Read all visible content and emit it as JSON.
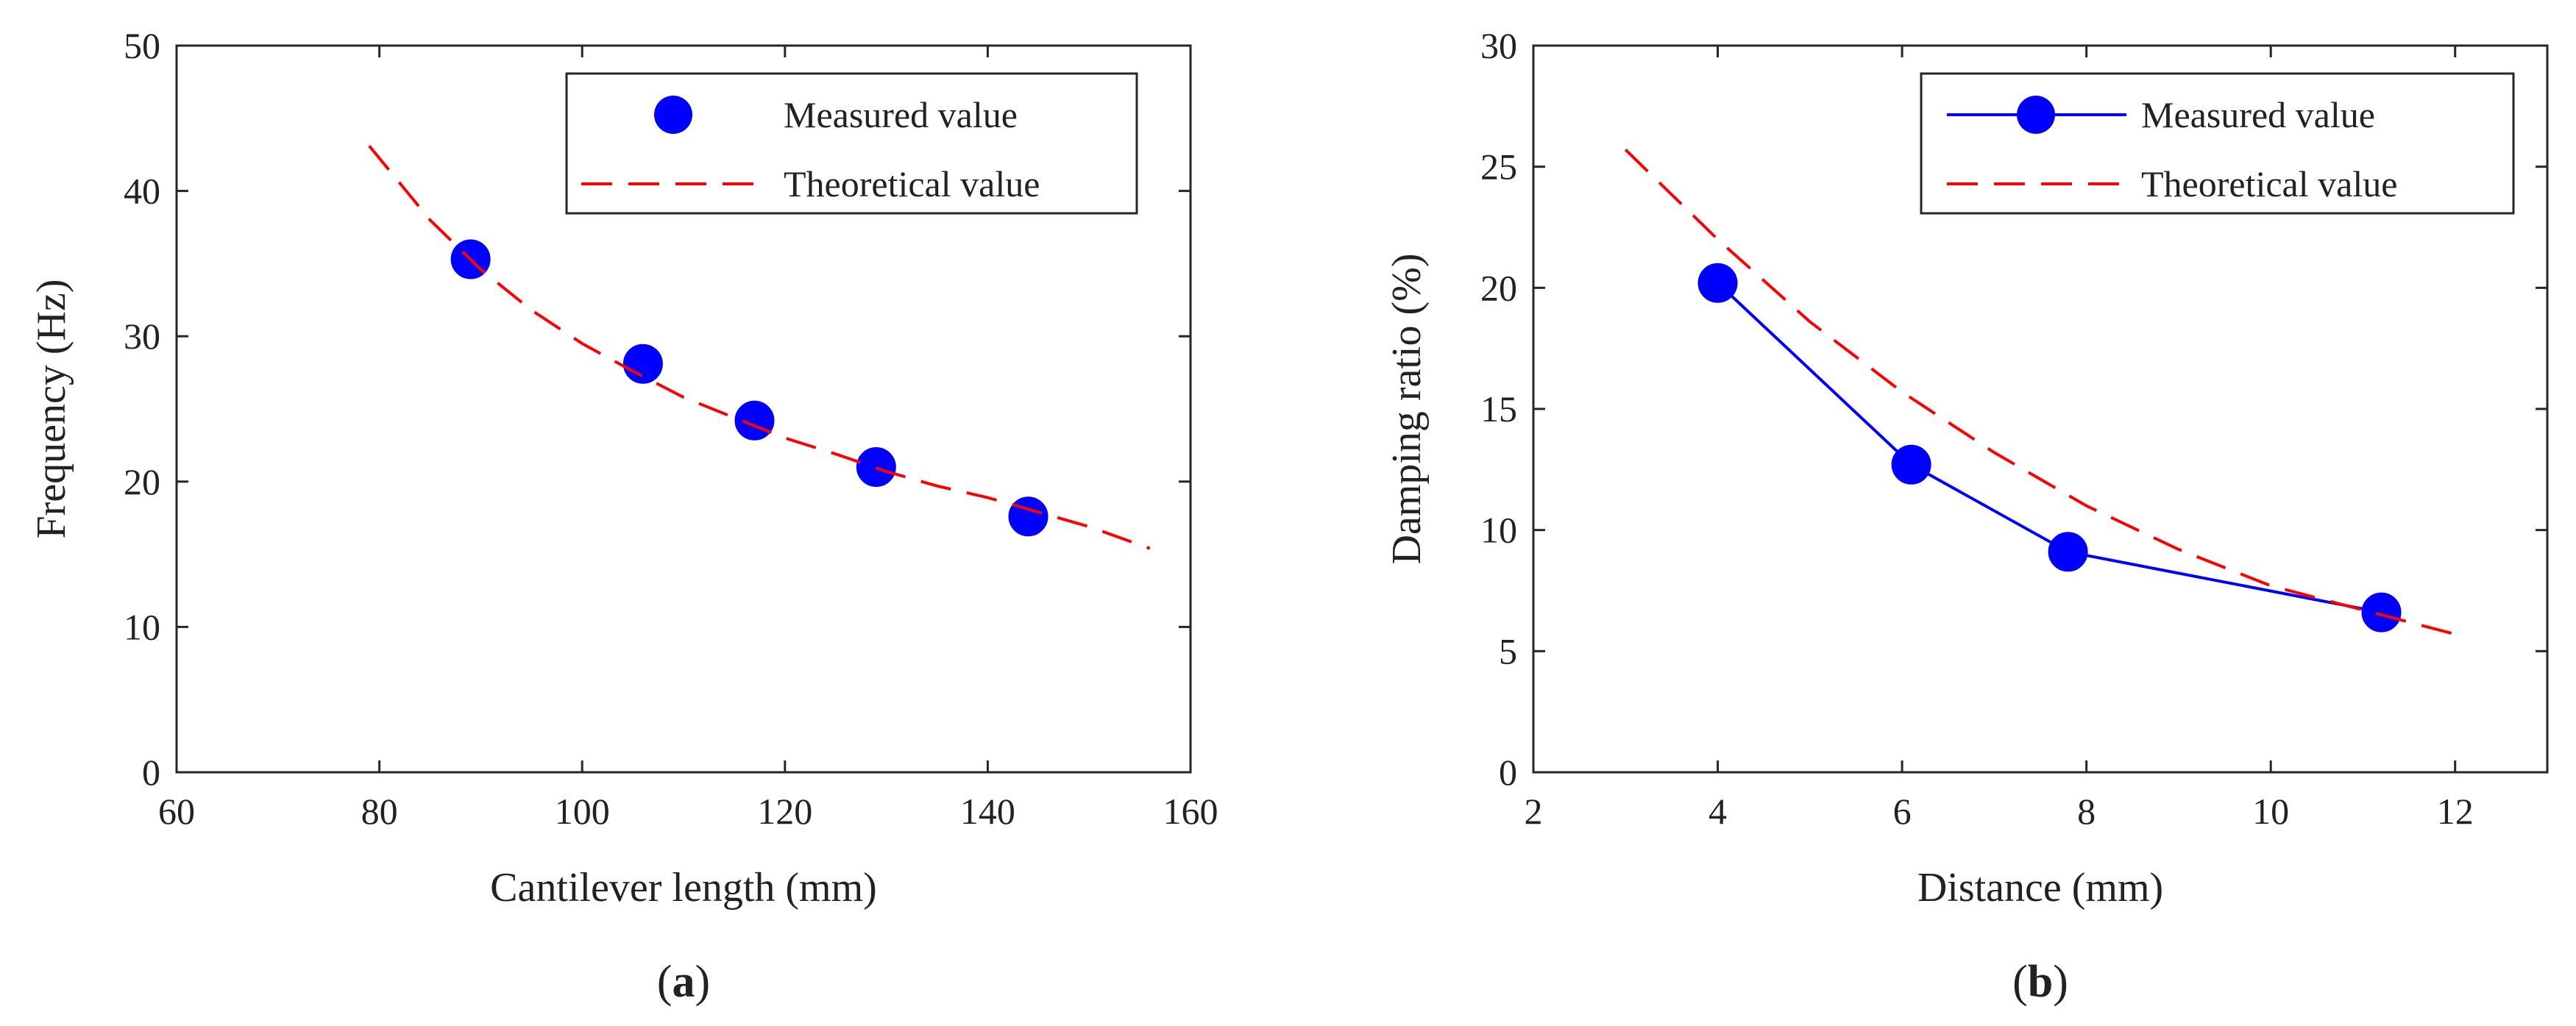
{
  "chart_data": [
    {
      "type": "scatter",
      "panel_label": "(a)",
      "panel_letter": "a",
      "xlabel": "Cantilever length (mm)",
      "ylabel": "Frequency (Hz)",
      "xlim": [
        60,
        160
      ],
      "ylim": [
        0,
        50
      ],
      "xticks": [
        60,
        80,
        100,
        120,
        140,
        160
      ],
      "yticks": [
        0,
        10,
        20,
        30,
        40,
        50
      ],
      "grid": false,
      "legend_position": "top-right",
      "series": [
        {
          "name": "Measured value",
          "style": "markers",
          "color": "#0000ff",
          "x": [
            89,
            106,
            117,
            129,
            144
          ],
          "y": [
            35.3,
            28.1,
            24.2,
            21.0,
            17.6
          ]
        },
        {
          "name": "Theoretical value",
          "style": "dashed-line",
          "color": "#ff0000",
          "x": [
            79,
            85,
            90,
            95,
            100,
            105,
            110,
            115,
            120,
            125,
            130,
            135,
            140,
            145,
            150,
            156
          ],
          "y": [
            43.1,
            38.0,
            34.6,
            31.8,
            29.5,
            27.6,
            25.8,
            24.4,
            23.0,
            21.9,
            20.7,
            19.7,
            18.9,
            17.9,
            16.9,
            15.4
          ]
        }
      ]
    },
    {
      "type": "line",
      "panel_label": "(b)",
      "panel_letter": "b",
      "xlabel": "Distance (mm)",
      "ylabel": "Damping ratio (%)",
      "xlim": [
        2,
        13
      ],
      "ylim": [
        0,
        30
      ],
      "xticks": [
        2,
        4,
        6,
        8,
        10,
        12
      ],
      "yticks": [
        0,
        5,
        10,
        15,
        20,
        25,
        30
      ],
      "grid": false,
      "legend_position": "top-right",
      "series": [
        {
          "name": "Measured value",
          "style": "line-markers",
          "color": "#0000ff",
          "x": [
            4.0,
            6.1,
            7.8,
            11.2
          ],
          "y": [
            20.2,
            12.7,
            9.1,
            6.6
          ]
        },
        {
          "name": "Theoretical value",
          "style": "dashed-line",
          "color": "#ff0000",
          "x": [
            3.0,
            4.0,
            5.0,
            6.0,
            7.0,
            8.0,
            9.0,
            10.0,
            11.0,
            12.0
          ],
          "y": [
            25.7,
            22.0,
            18.6,
            15.7,
            13.2,
            11.0,
            9.2,
            7.7,
            6.7,
            5.7
          ]
        }
      ]
    }
  ]
}
